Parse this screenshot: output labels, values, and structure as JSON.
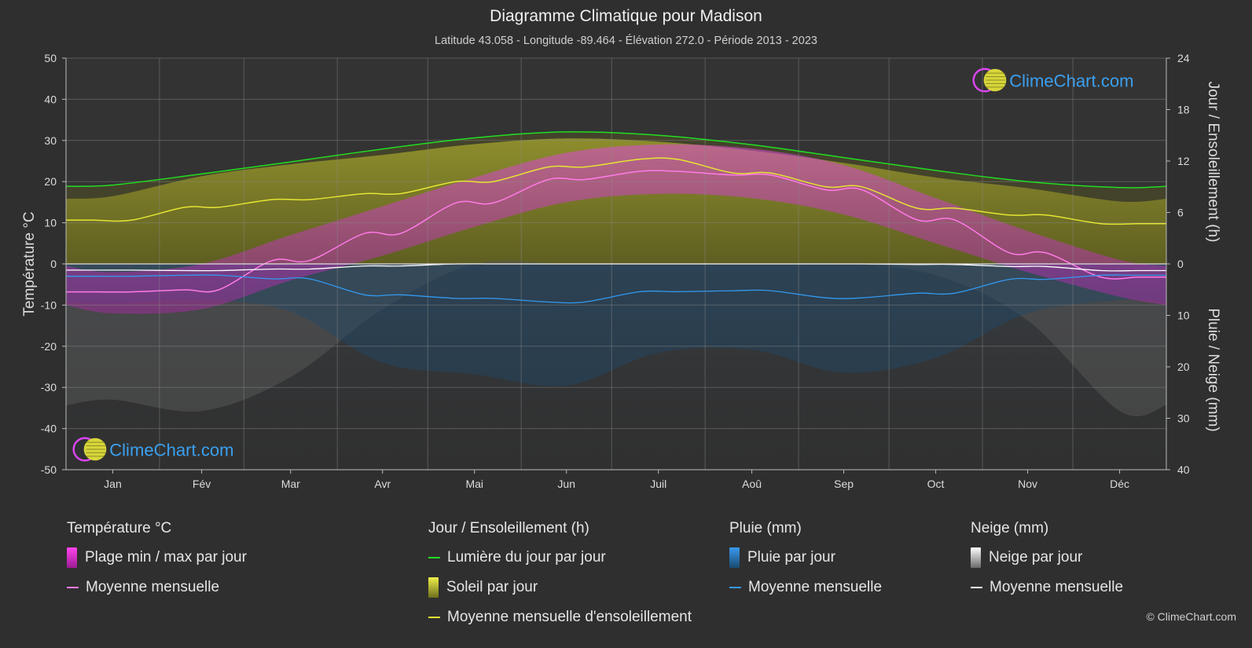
{
  "title": "Diagramme Climatique pour Madison",
  "subtitle": "Latitude 43.058 - Longitude -89.464 - Élévation 272.0 - Période 2013 - 2023",
  "logo_text": "ClimeChart.com",
  "copyright": "© ClimeChart.com",
  "colors": {
    "background": "#2f2f2f",
    "daylight": "#22dd22",
    "sunshine_avg": "#e5e533",
    "temp_avg": "#ff7ae6",
    "rain_avg": "#3399ee",
    "snow_avg": "#ffffff",
    "temp_range": "#d63ad3",
    "sunshine_fill": "#9a9a25",
    "logo_text": "#3aa0f0"
  },
  "legend": {
    "temperature": {
      "header": "Température °C",
      "items": [
        {
          "label": "Plage min / max par jour",
          "icon": "temp-range-swatch"
        },
        {
          "label": "Moyenne mensuelle",
          "icon": "temp-avg-line"
        }
      ]
    },
    "sun": {
      "header": "Jour / Ensoleillement (h)",
      "items": [
        {
          "label": "Lumière du jour par jour",
          "icon": "daylight-line"
        },
        {
          "label": "Soleil par jour",
          "icon": "sunshine-swatch"
        },
        {
          "label": "Moyenne mensuelle d'ensoleillement",
          "icon": "sunshine-avg-line"
        }
      ]
    },
    "rain": {
      "header": "Pluie (mm)",
      "items": [
        {
          "label": "Pluie par jour",
          "icon": "rain-swatch"
        },
        {
          "label": "Moyenne mensuelle",
          "icon": "rain-avg-line"
        }
      ]
    },
    "snow": {
      "header": "Neige (mm)",
      "items": [
        {
          "label": "Neige par jour",
          "icon": "snow-swatch"
        },
        {
          "label": "Moyenne mensuelle",
          "icon": "snow-avg-line"
        }
      ]
    }
  },
  "chart_data": {
    "type": "line",
    "title": "Diagramme Climatique pour Madison",
    "categories": [
      "Jan",
      "Fév",
      "Mar",
      "Avr",
      "Mai",
      "Jun",
      "Juil",
      "Aoû",
      "Sep",
      "Oct",
      "Nov",
      "Déc"
    ],
    "y_left": {
      "label": "Température °C",
      "range": [
        -50,
        50
      ],
      "ticks": [
        50,
        40,
        30,
        20,
        10,
        0,
        -10,
        -20,
        -30,
        -40,
        -50
      ]
    },
    "y_right_top": {
      "label": "Jour / Ensoleillement (h)",
      "range": [
        0,
        24
      ],
      "ticks": [
        24,
        18,
        12,
        6,
        0
      ]
    },
    "y_right_bottom": {
      "label": "Pluie / Neige (mm)",
      "range": [
        0,
        40
      ],
      "ticks": [
        0,
        10,
        20,
        30,
        40
      ]
    },
    "grid": true,
    "series": [
      {
        "name": "Lumière du jour par jour",
        "axis": "sun_hours",
        "values": [
          9.2,
          10.5,
          11.9,
          13.4,
          14.7,
          15.4,
          15.0,
          13.9,
          12.4,
          10.9,
          9.6,
          8.9
        ]
      },
      {
        "name": "Moyenne mensuelle d'ensoleillement",
        "axis": "sun_hours",
        "values": [
          5.1,
          6.6,
          7.5,
          8.2,
          9.6,
          11.3,
          12.2,
          10.6,
          9.0,
          6.5,
          5.7,
          4.7
        ]
      },
      {
        "name": "Moyenne mensuelle (Température)",
        "axis": "temperature_c",
        "values": [
          -6.8,
          -6.3,
          0.8,
          7.4,
          14.8,
          20.5,
          22.5,
          21.6,
          18.0,
          10.7,
          2.7,
          -3.2
        ]
      },
      {
        "name": "Moyenne mensuelle (Pluie)",
        "axis": "precip_mm",
        "values": [
          2.4,
          2.2,
          2.9,
          6.0,
          6.7,
          7.4,
          5.4,
          5.2,
          6.6,
          5.7,
          3.0,
          2.2
        ]
      },
      {
        "name": "Moyenne mensuelle (Neige)",
        "axis": "precip_mm",
        "values": [
          1.2,
          1.3,
          1.0,
          0.4,
          0.0,
          0.0,
          0.0,
          0.0,
          0.0,
          0.1,
          0.5,
          1.3
        ]
      },
      {
        "name": "Plage min / max par jour (max)",
        "axis": "temperature_c",
        "values": [
          -2,
          0,
          7,
          14,
          21,
          27,
          29,
          28,
          24,
          16,
          8,
          1
        ]
      },
      {
        "name": "Plage min / max par jour (min)",
        "axis": "temperature_c",
        "values": [
          -12,
          -11,
          -4,
          2,
          9,
          15,
          17,
          16,
          12,
          5,
          -2,
          -8
        ]
      }
    ]
  }
}
